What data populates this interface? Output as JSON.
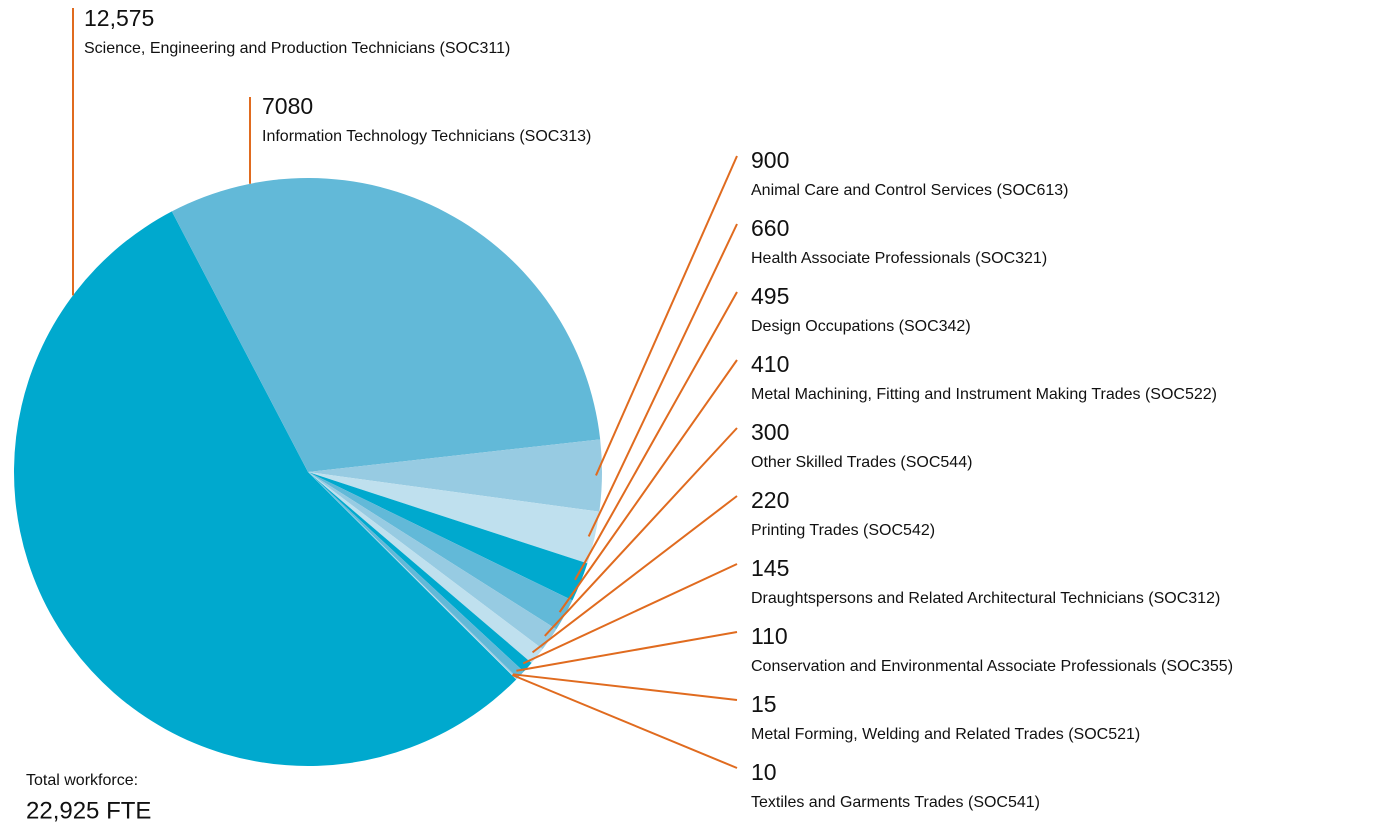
{
  "chart_data": {
    "type": "pie",
    "categories": [
      "Science, Engineering and Production Technicians (SOC311)",
      "Information Technology Technicians (SOC313)",
      "Animal Care and Control Services (SOC613)",
      "Health Associate Professionals (SOC321)",
      "Design Occupations (SOC342)",
      "Metal Machining, Fitting and Instrument Making Trades (SOC522)",
      "Other Skilled Trades (SOC544)",
      "Printing Trades (SOC542)",
      "Draughtspersons and Related Architectural Technicians (SOC312)",
      "Conservation and Environmental Associate Professionals (SOC355)",
      "Metal Forming, Welding and Related Trades (SOC521)",
      "Textiles and Garments Trades (SOC541)"
    ],
    "values": [
      12575,
      7080,
      900,
      660,
      495,
      410,
      300,
      220,
      145,
      110,
      15,
      10
    ],
    "value_labels": [
      "12,575",
      "7080",
      "900",
      "660",
      "495",
      "410",
      "300",
      "220",
      "145",
      "110",
      "15",
      "10"
    ],
    "colors": [
      "#00a9ce",
      "#62b9d8",
      "#97cbe2",
      "#bfe0ee",
      "#00a9ce",
      "#62b9d8",
      "#97cbe2",
      "#bfe0ee",
      "#00a9ce",
      "#62b9d8",
      "#97cbe2",
      "#bfe0ee"
    ],
    "leader_color": "#e06b1f",
    "annotations": [
      "Total workforce:",
      "22,925 FTE"
    ]
  }
}
